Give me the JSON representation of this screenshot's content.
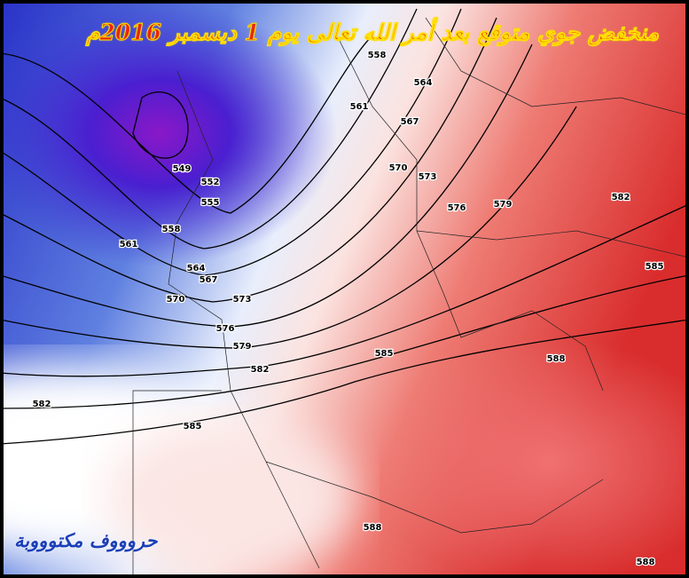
{
  "title": "منخفض جوي متوقع بعد أمر الله تعالى يوم 1 ديسمبر 2016م",
  "watermark": "حروووف مكتوووبة",
  "contour_labels": [
    558,
    564,
    561,
    567,
    570,
    573,
    576,
    579,
    582,
    585,
    549,
    552,
    555,
    558,
    561,
    564,
    567,
    570,
    573,
    576,
    579,
    582,
    585,
    588,
    582,
    585,
    588,
    588
  ]
}
